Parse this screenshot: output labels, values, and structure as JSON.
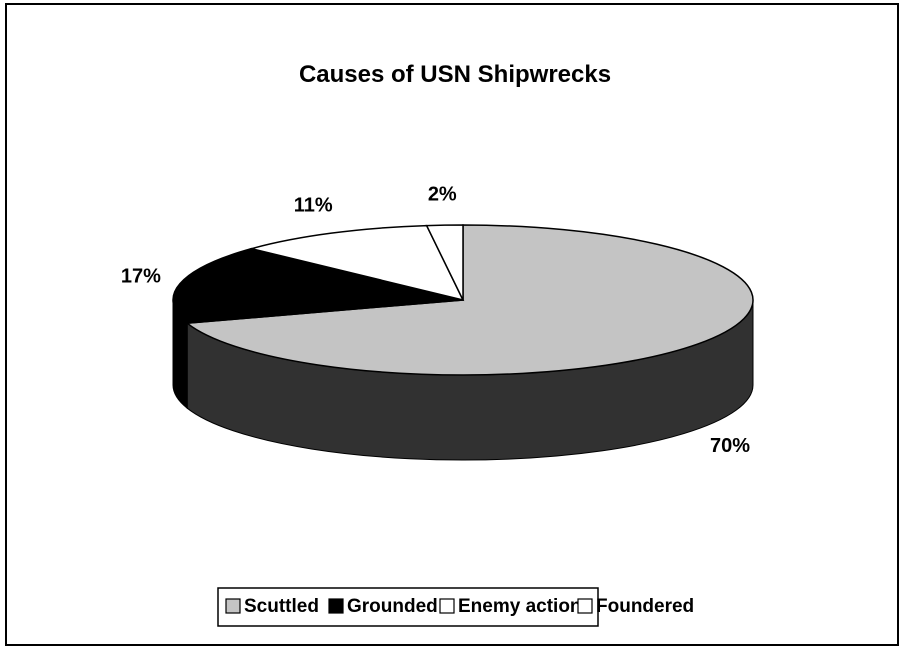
{
  "chart_data": {
    "type": "pie",
    "title": "Causes of USN Shipwrecks",
    "categories": [
      "Scuttled",
      "Grounded",
      "Enemy action",
      "Foundered"
    ],
    "values": [
      70,
      17,
      11,
      2
    ],
    "value_labels": [
      "70%",
      "17%",
      "11%",
      "2%"
    ],
    "colors": [
      "#c4c4c4",
      "#000000",
      "#ffffff",
      "#ffffff"
    ],
    "legend": "bottom"
  }
}
